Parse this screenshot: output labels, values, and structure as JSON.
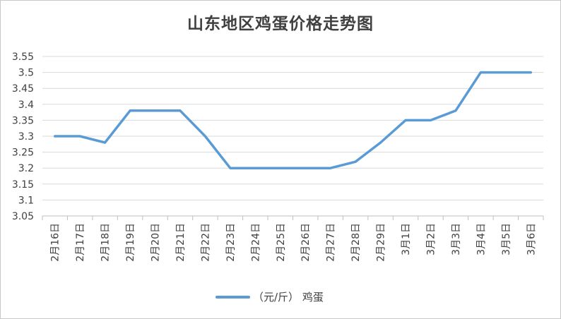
{
  "chart_data": {
    "type": "line",
    "title": "山东地区鸡蛋价格走势图",
    "xlabel": "",
    "ylabel": "",
    "categories": [
      "2月16日",
      "2月17日",
      "2月18日",
      "2月19日",
      "2月20日",
      "2月21日",
      "2月22日",
      "2月23日",
      "2月24日",
      "2月25日",
      "2月26日",
      "2月27日",
      "2月28日",
      "2月29日",
      "3月1日",
      "3月2日",
      "3月3日",
      "3月4日",
      "3月5日",
      "3月6日"
    ],
    "series": [
      {
        "name": "（元/斤） 鸡蛋",
        "color": "#5b9bd5",
        "values": [
          3.3,
          3.3,
          3.28,
          3.38,
          3.38,
          3.38,
          3.3,
          3.2,
          3.2,
          3.2,
          3.2,
          3.2,
          3.22,
          3.28,
          3.35,
          3.35,
          3.38,
          3.5,
          3.5,
          3.5
        ]
      }
    ],
    "ylim": [
      3.05,
      3.55
    ],
    "yticks": [
      "3.05",
      "3.1",
      "3.15",
      "3.2",
      "3.25",
      "3.3",
      "3.35",
      "3.4",
      "3.45",
      "3.5",
      "3.55"
    ],
    "grid": true,
    "legend_position": "bottom"
  }
}
